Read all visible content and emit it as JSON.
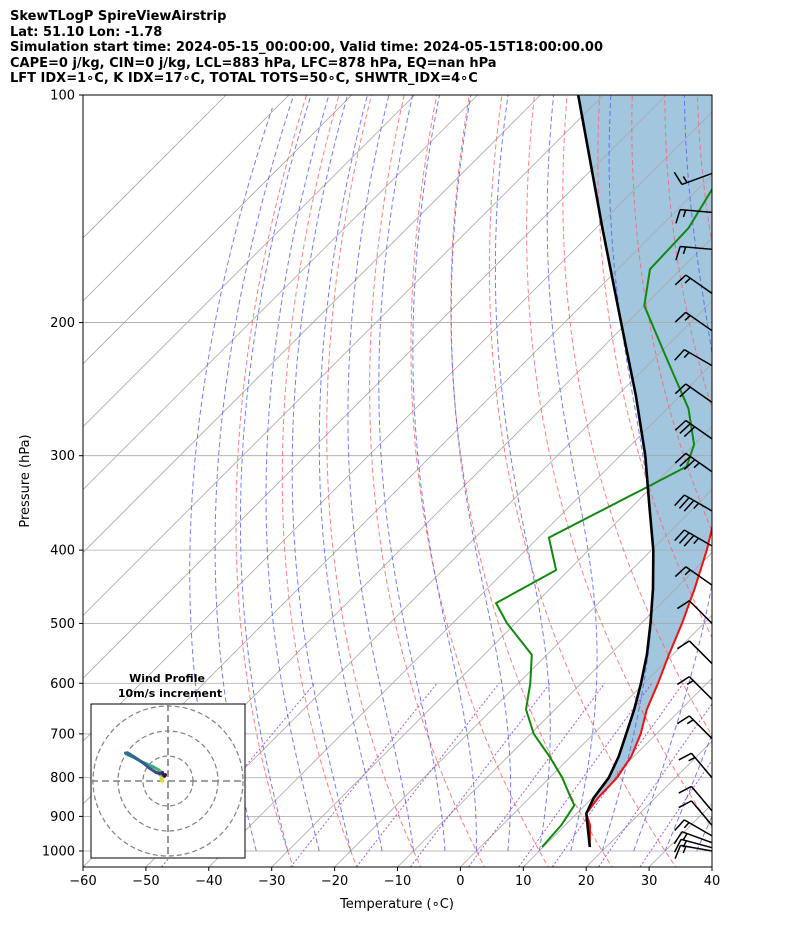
{
  "header": {
    "line1": "SkewTLogP SpireViewAirstrip",
    "line2": "Lat: 51.10   Lon: -1.78",
    "line3": "Simulation start time: 2024-05-15_00:00:00, Valid time: 2024-05-15T18:00:00.00",
    "line4": "CAPE=0 j/kg, CIN=0 j/kg, LCL=883 hPa, LFC=878 hPa, EQ=nan hPa",
    "line5": "LFT IDX=1∘C, K IDX=17∘C, TOTAL TOTS=50∘C, SHWTR_IDX=4∘C"
  },
  "chart_data": {
    "type": "line",
    "subtype": "skew-t log-p",
    "xlabel": "Temperature (∘C)",
    "ylabel": "Pressure (hPa)",
    "xlim": [
      -60,
      40
    ],
    "ylim": [
      1050,
      100
    ],
    "y_scale": "log",
    "grid": true,
    "x_ticks": [
      -60,
      -50,
      -40,
      -30,
      -20,
      -10,
      0,
      10,
      20,
      30,
      40
    ],
    "y_ticks": [
      1000,
      900,
      800,
      700,
      600,
      500,
      400,
      300,
      200,
      100
    ],
    "colors": {
      "temperature": "#ee1111",
      "dewpoint": "#118811",
      "parcel": "#000000",
      "shade": "#a3c6df",
      "dry_adiabats": "#ff6060",
      "moist_adiabats": "#4f5ff0",
      "mixing_ratio": "#9933cc",
      "isotherms": "#a8a8a8"
    },
    "series": [
      {
        "role": "temperature",
        "points": [
          {
            "p": 988,
            "t": 17.4
          },
          {
            "p": 925,
            "t": 14.0
          },
          {
            "p": 892,
            "t": 11.5
          },
          {
            "p": 850,
            "t": 10.9
          },
          {
            "p": 800,
            "t": 10.7
          },
          {
            "p": 750,
            "t": 9.6
          },
          {
            "p": 700,
            "t": 7.5
          },
          {
            "p": 650,
            "t": 4.6
          },
          {
            "p": 600,
            "t": 2.2
          },
          {
            "p": 550,
            "t": -0.6
          },
          {
            "p": 500,
            "t": -3.5
          },
          {
            "p": 450,
            "t": -7.0
          },
          {
            "p": 400,
            "t": -11.2
          },
          {
            "p": 350,
            "t": -16.5
          },
          {
            "p": 300,
            "t": -23.5
          },
          {
            "p": 275,
            "t": -28.7
          },
          {
            "p": 250,
            "t": -32.8
          },
          {
            "p": 225,
            "t": -37.9
          },
          {
            "p": 200,
            "t": -44.0
          },
          {
            "p": 175,
            "t": -50.0
          },
          {
            "p": 150,
            "t": -57.2
          },
          {
            "p": 130,
            "t": -62.3
          },
          {
            "p": 115,
            "t": -64.8
          },
          {
            "p": 100,
            "t": -68.6
          }
        ]
      },
      {
        "role": "dewpoint",
        "points": [
          {
            "p": 988,
            "t": 9.8
          },
          {
            "p": 925,
            "t": 9.4
          },
          {
            "p": 870,
            "t": 8.3
          },
          {
            "p": 850,
            "t": 6.5
          },
          {
            "p": 800,
            "t": 2.0
          },
          {
            "p": 750,
            "t": -3.4
          },
          {
            "p": 700,
            "t": -9.5
          },
          {
            "p": 650,
            "t": -14.6
          },
          {
            "p": 600,
            "t": -18.1
          },
          {
            "p": 550,
            "t": -22.4
          },
          {
            "p": 500,
            "t": -31.3
          },
          {
            "p": 470,
            "t": -36.3
          },
          {
            "p": 425,
            "t": -32.0
          },
          {
            "p": 385,
            "t": -38.3
          },
          {
            "p": 330,
            "t": -30.7
          },
          {
            "p": 310,
            "t": -27.7
          },
          {
            "p": 290,
            "t": -30.0
          },
          {
            "p": 260,
            "t": -36.6
          },
          {
            "p": 220,
            "t": -49.1
          },
          {
            "p": 190,
            "t": -60.0
          },
          {
            "p": 170,
            "t": -64.9
          },
          {
            "p": 150,
            "t": -65.3
          },
          {
            "p": 100,
            "t": -73.6
          }
        ]
      },
      {
        "role": "parcel",
        "points": [
          {
            "p": 988,
            "t": 17.4
          },
          {
            "p": 892,
            "t": 11.5
          },
          {
            "p": 850,
            "t": 10.2
          },
          {
            "p": 800,
            "t": 9.4
          },
          {
            "p": 750,
            "t": 7.6
          },
          {
            "p": 700,
            "t": 5.2
          },
          {
            "p": 650,
            "t": 2.6
          },
          {
            "p": 600,
            "t": -0.5
          },
          {
            "p": 550,
            "t": -4.1
          },
          {
            "p": 500,
            "t": -8.5
          },
          {
            "p": 450,
            "t": -13.6
          },
          {
            "p": 400,
            "t": -19.7
          },
          {
            "p": 350,
            "t": -27.3
          },
          {
            "p": 300,
            "t": -36.0
          },
          {
            "p": 250,
            "t": -47.0
          },
          {
            "p": 200,
            "t": -61.0
          },
          {
            "p": 150,
            "t": -79.0
          },
          {
            "p": 100,
            "t": -104.0
          }
        ]
      }
    ],
    "wind_barbs": [
      {
        "p": 1000,
        "speed_kt": 15,
        "dir_deg": 280
      },
      {
        "p": 990,
        "speed_kt": 15,
        "dir_deg": 285
      },
      {
        "p": 975,
        "speed_kt": 15,
        "dir_deg": 290
      },
      {
        "p": 955,
        "speed_kt": 15,
        "dir_deg": 300
      },
      {
        "p": 925,
        "speed_kt": 10,
        "dir_deg": 320
      },
      {
        "p": 885,
        "speed_kt": 10,
        "dir_deg": 320
      },
      {
        "p": 800,
        "speed_kt": 15,
        "dir_deg": 320
      },
      {
        "p": 710,
        "speed_kt": 15,
        "dir_deg": 315
      },
      {
        "p": 630,
        "speed_kt": 15,
        "dir_deg": 315
      },
      {
        "p": 565,
        "speed_kt": 10,
        "dir_deg": 315
      },
      {
        "p": 500,
        "speed_kt": 10,
        "dir_deg": 315
      },
      {
        "p": 445,
        "speed_kt": 15,
        "dir_deg": 305
      },
      {
        "p": 395,
        "speed_kt": 35,
        "dir_deg": 300
      },
      {
        "p": 355,
        "speed_kt": 35,
        "dir_deg": 300
      },
      {
        "p": 315,
        "speed_kt": 35,
        "dir_deg": 305
      },
      {
        "p": 285,
        "speed_kt": 30,
        "dir_deg": 305
      },
      {
        "p": 255,
        "speed_kt": 20,
        "dir_deg": 305
      },
      {
        "p": 228,
        "speed_kt": 15,
        "dir_deg": 300
      },
      {
        "p": 205,
        "speed_kt": 15,
        "dir_deg": 305
      },
      {
        "p": 183,
        "speed_kt": 15,
        "dir_deg": 305
      },
      {
        "p": 160,
        "speed_kt": 15,
        "dir_deg": 275
      },
      {
        "p": 143,
        "speed_kt": 15,
        "dir_deg": 275
      },
      {
        "p": 127,
        "speed_kt": 15,
        "dir_deg": 250
      }
    ],
    "hodograph": {
      "title": "Wind Profile",
      "subtitle": "10m/s increment",
      "ring_spacing_ms": 10,
      "colormap": "viridis",
      "points": [
        {
          "u": -2.4,
          "v": -0.3
        },
        {
          "u": -2.5,
          "v": 0.5
        },
        {
          "u": -2.7,
          "v": 1.0
        },
        {
          "u": -1.5,
          "v": 1.8
        },
        {
          "u": -0.8,
          "v": 2.3
        },
        {
          "u": -1.5,
          "v": 2.6
        },
        {
          "u": -2.5,
          "v": 2.3
        },
        {
          "u": -3.2,
          "v": 2.5
        },
        {
          "u": -2.6,
          "v": 3.4
        },
        {
          "u": -3.8,
          "v": 4.5
        },
        {
          "u": -6.0,
          "v": 5.7
        },
        {
          "u": -8.5,
          "v": 6.8
        },
        {
          "u": -11.0,
          "v": 7.9
        },
        {
          "u": -13.2,
          "v": 9.2
        },
        {
          "u": -16.0,
          "v": 10.5
        },
        {
          "u": -17.0,
          "v": 11.2
        },
        {
          "u": -15.7,
          "v": 11.0
        },
        {
          "u": -13.5,
          "v": 9.6
        },
        {
          "u": -10.3,
          "v": 7.5
        },
        {
          "u": -7.5,
          "v": 5.2
        },
        {
          "u": -4.8,
          "v": 3.4
        },
        {
          "u": -3.3,
          "v": 3.0
        },
        {
          "u": -2.2,
          "v": 3.4
        },
        {
          "u": -2.0,
          "v": 2.8
        },
        {
          "u": -1.7,
          "v": 2.2
        },
        {
          "u": -1.4,
          "v": 1.9
        },
        {
          "u": -1.0,
          "v": 2.5
        }
      ]
    }
  }
}
